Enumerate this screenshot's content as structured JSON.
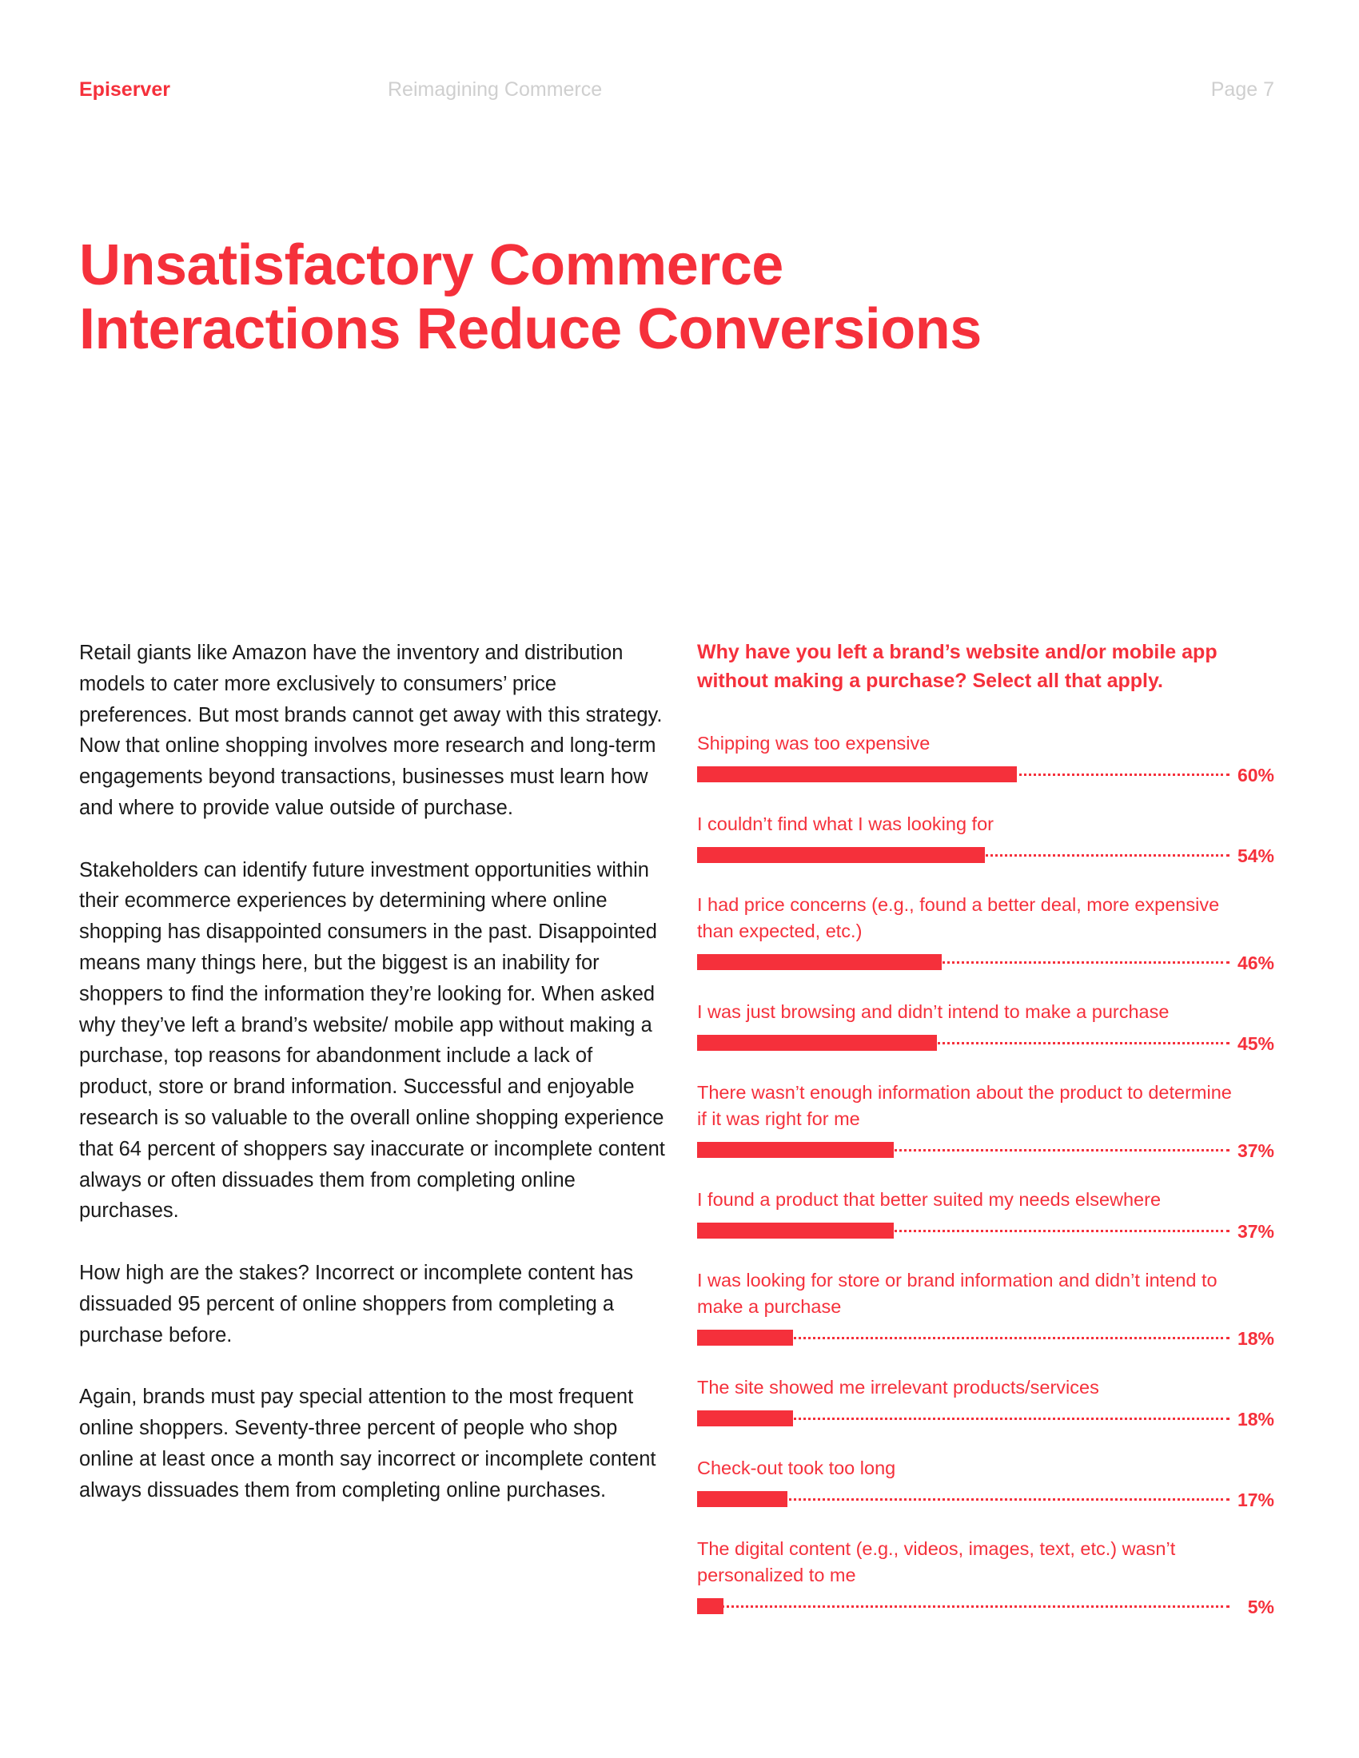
{
  "header": {
    "brand": "Episerver",
    "document_title": "Reimagining Commerce",
    "page_label": "Page 7"
  },
  "heading": {
    "line1": "Unsatisfactory Commerce",
    "line2": "Interactions Reduce Conversions"
  },
  "body": {
    "paragraphs": [
      "Retail giants like Amazon have the inventory and distribution models to cater more exclusively to consumers’ price preferences. But most brands cannot get away with this strategy. Now that online shopping involves more research and long-term engagements beyond transactions, businesses must learn how and where to provide value outside of purchase.",
      "Stakeholders can identify future investment opportunities within their ecommerce experiences by determining where online shopping has disappointed consumers in the past. Disappointed means many things here, but the biggest is an inability for shoppers to find the information they’re looking for. When asked why they’ve left a brand’s website/ mobile app without making a purchase, top reasons for abandonment include a lack of product, store or brand information. Successful and enjoyable research is so valuable to the overall online shopping experience that 64 percent of shoppers say inaccurate or incomplete content always or often dissuades them from completing online purchases.",
      "How high are the stakes? Incorrect or incomplete content has dissuaded 95 percent of online shoppers from completing a purchase before.",
      "Again, brands must pay special attention to the most frequent online shoppers. Seventy-three percent of people who shop online at least once a month say incorrect or incomplete content always dissuades them from completing online purchases."
    ]
  },
  "colors": {
    "accent": "#f5303b",
    "header_gray": "#cfcfcf",
    "body_text": "#1a1a1a"
  },
  "chart_data": {
    "type": "bar",
    "orientation": "horizontal",
    "title": "Why have you left a brand’s website and/or mobile app without making a purchase? Select all that apply.",
    "xlabel": "",
    "ylabel": "",
    "xlim": [
      0,
      100
    ],
    "unit": "%",
    "categories": [
      "Shipping was too expensive",
      "I couldn’t find what I was looking for",
      "I had price concerns (e.g., found a better deal, more expensive than expected, etc.)",
      "I was just browsing and didn’t intend to make a purchase",
      "There wasn’t enough information about the product to determine if it was right for me",
      "I found a product that better suited my needs elsewhere",
      "I was looking for store or brand information and didn’t intend to make a purchase",
      "The site showed me irrelevant products/services",
      "Check-out took too long",
      "The digital content (e.g., videos, images, text, etc.) wasn’t personalized to me"
    ],
    "values": [
      60,
      54,
      46,
      45,
      37,
      37,
      18,
      18,
      17,
      5
    ],
    "value_labels": [
      "60%",
      "54%",
      "46%",
      "45%",
      "37%",
      "37%",
      "18%",
      "18%",
      "17%",
      "5%"
    ]
  }
}
